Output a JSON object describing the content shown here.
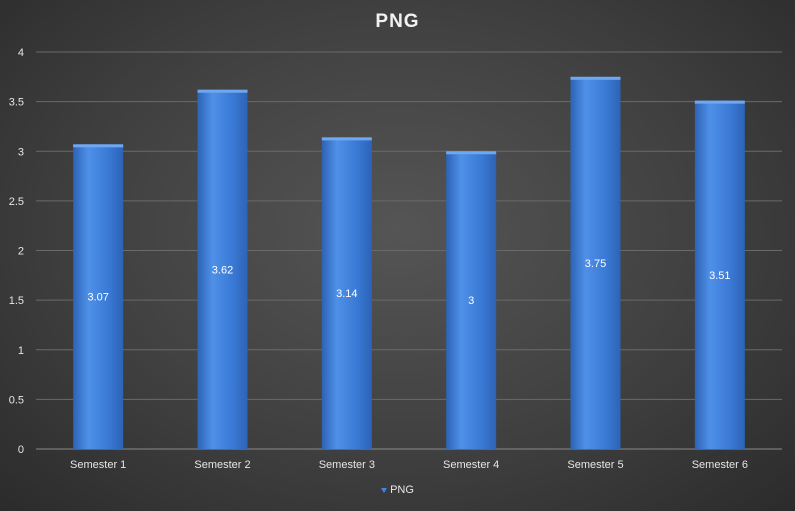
{
  "chart_data": {
    "type": "bar",
    "title": "PNG",
    "categories": [
      "Semester 1",
      "Semester 2",
      "Semester 3",
      "Semester 4",
      "Semester 5",
      "Semester 6"
    ],
    "series": [
      {
        "name": "PNG",
        "values": [
          3.07,
          3.62,
          3.14,
          3,
          3.75,
          3.51
        ]
      }
    ],
    "data_labels": [
      "3.07",
      "3.62",
      "3.14",
      "3",
      "3.75",
      "3.51"
    ],
    "y_ticks": [
      "0",
      "0.5",
      "1",
      "1.5",
      "2",
      "2.5",
      "3",
      "3.5",
      "4"
    ],
    "ylim": [
      0,
      4
    ],
    "grid": true,
    "legend_position": "bottom",
    "colors": {
      "bar": "#3a7ad6",
      "bar_light": "#4f90e8",
      "bar_dark": "#2c63b5",
      "grid": "#6a6a6a",
      "background": "#404040"
    }
  }
}
